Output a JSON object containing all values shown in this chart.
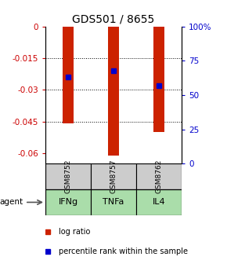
{
  "title": "GDS501 / 8655",
  "samples": [
    "GSM8752",
    "GSM8757",
    "GSM8762"
  ],
  "agents": [
    "IFNg",
    "TNFa",
    "IL4"
  ],
  "log_ratios": [
    -0.046,
    -0.061,
    -0.05
  ],
  "percentile_ranks": [
    63,
    68,
    57
  ],
  "ylim_left": [
    -0.065,
    0.0
  ],
  "ylim_right": [
    0,
    100
  ],
  "left_ticks": [
    0,
    -0.015,
    -0.03,
    -0.045,
    -0.06
  ],
  "right_ticks": [
    0,
    25,
    50,
    75,
    100
  ],
  "right_tick_labels": [
    "0",
    "25",
    "50",
    "75",
    "100%"
  ],
  "bar_color": "#cc2200",
  "dot_color": "#0000cc",
  "sample_bg": "#cccccc",
  "agent_bg": "#aaddaa",
  "bar_width": 0.25,
  "dot_size": 5,
  "grid_ticks": [
    -0.015,
    -0.03,
    -0.045
  ],
  "left_tick_color": "#cc0000",
  "right_tick_color": "#0000cc",
  "title_fontsize": 10,
  "tick_fontsize": 7.5,
  "sample_fontsize": 6.5,
  "agent_fontsize": 8
}
